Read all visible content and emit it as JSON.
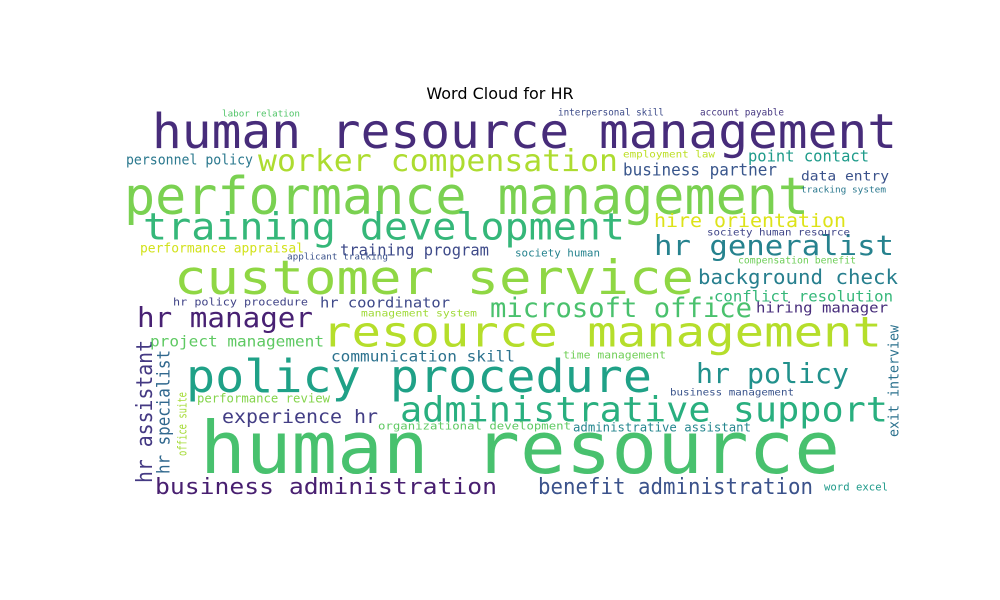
{
  "chart_data": {
    "type": "wordcloud",
    "title": "Word Cloud for HR",
    "words": [
      {
        "text": "human resource",
        "color": "#48c16e"
      },
      {
        "text": "human resource management",
        "color": "#472c7a"
      },
      {
        "text": "performance management",
        "color": "#7ad151"
      },
      {
        "text": "customer service",
        "color": "#8fd744"
      },
      {
        "text": "resource management",
        "color": "#b5de2b"
      },
      {
        "text": "policy procedure",
        "color": "#1fa187"
      },
      {
        "text": "training development",
        "color": "#35b779"
      },
      {
        "text": "administrative support",
        "color": "#29af7f"
      },
      {
        "text": "worker compensation",
        "color": "#addc30"
      },
      {
        "text": "microsoft office",
        "color": "#4ac16d"
      },
      {
        "text": "hr generalist",
        "color": "#26828e"
      },
      {
        "text": "hr manager",
        "color": "#482173"
      },
      {
        "text": "hr policy",
        "color": "#21918c"
      },
      {
        "text": "business administration",
        "color": "#481f70"
      },
      {
        "text": "benefit administration",
        "color": "#3b528b"
      },
      {
        "text": "background check",
        "color": "#277f8e"
      },
      {
        "text": "hire orientation",
        "color": "#dde318"
      },
      {
        "text": "experience hr",
        "color": "#433e85"
      },
      {
        "text": "point contact",
        "color": "#1e9b8a"
      },
      {
        "text": "business partner",
        "color": "#39568c"
      },
      {
        "text": "hr assistant",
        "color": "#443983"
      },
      {
        "text": "training program",
        "color": "#3e4a89"
      },
      {
        "text": "conflict resolution",
        "color": "#35b779"
      },
      {
        "text": "project management",
        "color": "#5ec962"
      },
      {
        "text": "communication skill",
        "color": "#2c728e"
      },
      {
        "text": "personnel policy",
        "color": "#2a788e"
      },
      {
        "text": "hr specialist",
        "color": "#31688e"
      },
      {
        "text": "data entry",
        "color": "#3b528b"
      },
      {
        "text": "hr coordinator",
        "color": "#3e4989"
      },
      {
        "text": "hiring manager",
        "color": "#472d7b"
      },
      {
        "text": "exit interview",
        "color": "#2c728e"
      },
      {
        "text": "performance appraisal",
        "color": "#d2e21b"
      },
      {
        "text": "performance review",
        "color": "#84d44b"
      },
      {
        "text": "hr policy procedure",
        "color": "#414487"
      },
      {
        "text": "office suite",
        "color": "#a5db36"
      },
      {
        "text": "employment law",
        "color": "#bddf26"
      },
      {
        "text": "time management",
        "color": "#70cf57"
      },
      {
        "text": "administrative assistant",
        "color": "#24868e"
      },
      {
        "text": "organizational development",
        "color": "#5ec962"
      },
      {
        "text": "society human resource",
        "color": "#404688"
      },
      {
        "text": "society human",
        "color": "#25838e"
      },
      {
        "text": "business management",
        "color": "#3a548c"
      },
      {
        "text": "compensation benefit",
        "color": "#6ece58"
      },
      {
        "text": "word excel",
        "color": "#1f9a8a"
      },
      {
        "text": "interpersonal skill",
        "color": "#3e4c8a"
      },
      {
        "text": "account payable",
        "color": "#453781"
      },
      {
        "text": "management system",
        "color": "#a0da39"
      },
      {
        "text": "tracking system",
        "color": "#2a788e"
      },
      {
        "text": "labor relation",
        "color": "#52c569"
      },
      {
        "text": "applicant tracking",
        "color": "#3b528b"
      }
    ]
  }
}
